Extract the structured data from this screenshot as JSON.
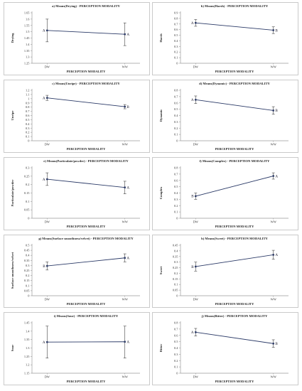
{
  "chart_data": [
    {
      "type": "line",
      "title": "a) Means(Drying) - PERCEPTION MODALITY",
      "ylabel": "Drying",
      "xlabel": "PERCEPTION MODALITY",
      "categories": [
        "DW",
        "WW"
      ],
      "ylim": [
        1.25,
        1.65
      ],
      "yticks": [
        1.25,
        1.3,
        1.35,
        1.4,
        1.45,
        1.5,
        1.55,
        1.6,
        1.65
      ],
      "values": [
        1.51,
        1.48
      ],
      "lower": [
        1.42,
        1.39
      ],
      "upper": [
        1.6,
        1.57
      ],
      "groups": [
        "A",
        "A"
      ]
    },
    {
      "type": "line",
      "title": "b) Means(Harsh) - PERCEPTION MODALITY",
      "ylabel": "Harsh",
      "xlabel": "PERCEPTION MODALITY",
      "categories": [
        "DW",
        "WW"
      ],
      "ylim": [
        0,
        0.9
      ],
      "yticks": [
        0,
        0.1,
        0.2,
        0.3,
        0.4,
        0.5,
        0.6,
        0.7,
        0.8,
        0.9
      ],
      "values": [
        0.72,
        0.59
      ],
      "lower": [
        0.66,
        0.53
      ],
      "upper": [
        0.78,
        0.65
      ],
      "groups": [
        "A",
        "B"
      ]
    },
    {
      "type": "line",
      "title": "c) Means(Unripe) - PERCEPTION MODALITY",
      "ylabel": "Unripe",
      "xlabel": "PERCEPTION MODALITY",
      "categories": [
        "DW",
        "WW"
      ],
      "ylim": [
        0,
        1.2
      ],
      "yticks": [
        0,
        0.1,
        0.2,
        0.3,
        0.4,
        0.5,
        0.6,
        0.7,
        0.8,
        0.9,
        1,
        1.1,
        1.2
      ],
      "values": [
        1.02,
        0.81
      ],
      "lower": [
        0.96,
        0.76
      ],
      "upper": [
        1.08,
        0.86
      ],
      "groups": [
        "A",
        "B"
      ]
    },
    {
      "type": "line",
      "title": "d) Means(Dynamic) - PERCEPTION MODALITY",
      "ylabel": "Dynamic",
      "xlabel": "PERCEPTION MODALITY",
      "categories": [
        "DW",
        "WW"
      ],
      "ylim": [
        0,
        0.8
      ],
      "yticks": [
        0,
        0.1,
        0.2,
        0.3,
        0.4,
        0.5,
        0.6,
        0.7,
        0.8
      ],
      "values": [
        0.65,
        0.48
      ],
      "lower": [
        0.59,
        0.42
      ],
      "upper": [
        0.71,
        0.54
      ],
      "groups": [
        "A",
        "B"
      ]
    },
    {
      "type": "line",
      "title": "e) Means(Particulate/powder) - PERCEPTION MODALITY",
      "ylabel": "Particulate/powder",
      "xlabel": "PERCEPTION MODALITY",
      "categories": [
        "DW",
        "WW"
      ],
      "ylim": [
        0,
        0.3
      ],
      "yticks": [
        0,
        0.05,
        0.1,
        0.15,
        0.2,
        0.25,
        0.3
      ],
      "values": [
        0.232,
        0.183
      ],
      "lower": [
        0.195,
        0.145
      ],
      "upper": [
        0.27,
        0.22
      ],
      "groups": [
        "A",
        "A"
      ]
    },
    {
      "type": "line",
      "title": "f) Means(Complex) - PERCEPTION MODALITY",
      "ylabel": "Complex",
      "xlabel": "PERCEPTION MODALITY",
      "categories": [
        "DW",
        "WW"
      ],
      "ylim": [
        0,
        0.8
      ],
      "yticks": [
        0,
        0.1,
        0.2,
        0.3,
        0.4,
        0.5,
        0.6,
        0.7,
        0.8
      ],
      "values": [
        0.35,
        0.67
      ],
      "lower": [
        0.3,
        0.62
      ],
      "upper": [
        0.4,
        0.72
      ],
      "groups": [
        "B",
        "A"
      ]
    },
    {
      "type": "line",
      "title": "g) Means(Surface smoothness/velvet) - PERCEPTION MODALITY",
      "ylabel": "Surface smoothness/velvet",
      "xlabel": "PERCEPTION MODALITY",
      "categories": [
        "DW",
        "WW"
      ],
      "ylim": [
        0,
        0.5
      ],
      "yticks": [
        0,
        0.05,
        0.1,
        0.15,
        0.2,
        0.25,
        0.3,
        0.35,
        0.4,
        0.45,
        0.5
      ],
      "values": [
        0.295,
        0.375
      ],
      "lower": [
        0.255,
        0.335
      ],
      "upper": [
        0.335,
        0.415
      ],
      "groups": [
        "B",
        "A"
      ]
    },
    {
      "type": "line",
      "title": "h) Means(Sweet) - PERCEPTION MODALITY",
      "ylabel": "Sweet",
      "xlabel": "PERCEPTION MODALITY",
      "categories": [
        "DW",
        "WW"
      ],
      "ylim": [
        0,
        0.45
      ],
      "yticks": [
        0,
        0.05,
        0.1,
        0.15,
        0.2,
        0.25,
        0.3,
        0.35,
        0.4,
        0.45
      ],
      "values": [
        0.26,
        0.365
      ],
      "lower": [
        0.22,
        0.325
      ],
      "upper": [
        0.3,
        0.405
      ],
      "groups": [
        "B",
        "A"
      ]
    },
    {
      "type": "line",
      "title": "i) Means(Sour) - PERCEPTION MODALITY",
      "ylabel": "Sour",
      "xlabel": "PERCEPTION MODALITY",
      "categories": [
        "DW",
        "WW"
      ],
      "ylim": [
        1.15,
        1.45
      ],
      "yticks": [
        1.15,
        1.2,
        1.25,
        1.3,
        1.35,
        1.4,
        1.45
      ],
      "values": [
        1.335,
        1.337
      ],
      "lower": [
        1.24,
        1.24
      ],
      "upper": [
        1.43,
        1.43
      ],
      "groups": [
        "A",
        "A"
      ]
    },
    {
      "type": "line",
      "title": "j) Means(Bitter) - PERCEPTION MODALITY",
      "ylabel": "Bitter",
      "xlabel": "PERCEPTION MODALITY",
      "categories": [
        "DW",
        "WW"
      ],
      "ylim": [
        0,
        0.8
      ],
      "yticks": [
        0,
        0.1,
        0.2,
        0.3,
        0.4,
        0.5,
        0.6,
        0.7,
        0.8
      ],
      "values": [
        0.65,
        0.47
      ],
      "lower": [
        0.59,
        0.41
      ],
      "upper": [
        0.71,
        0.53
      ],
      "groups": [
        "A",
        "B"
      ]
    }
  ],
  "colors": {
    "line": "#2b3a67",
    "error": "#444444",
    "axis": "#9a9a9a",
    "frame": "#bdbdbd",
    "text": "#222222"
  }
}
